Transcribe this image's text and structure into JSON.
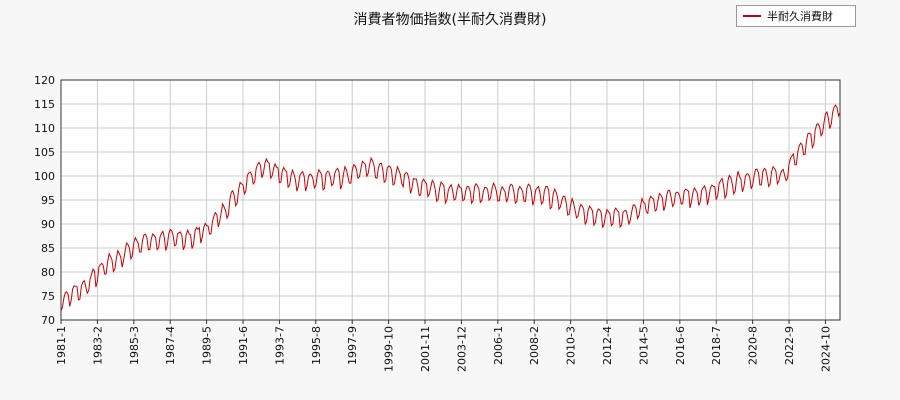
{
  "chart_data": {
    "type": "line",
    "title": "消費者物価指数(半耐久消費財)",
    "legend": "top-right",
    "grid": true,
    "x_range": [
      "1981-01",
      "2025-08"
    ],
    "ylim": [
      70,
      120
    ],
    "y_ticks": [
      70,
      75,
      80,
      85,
      90,
      95,
      100,
      105,
      110,
      115,
      120
    ],
    "x_ticks": [
      "1981-1",
      "1983-2",
      "1985-3",
      "1987-4",
      "1989-5",
      "1991-6",
      "1993-7",
      "1995-8",
      "1997-9",
      "1999-10",
      "2001-11",
      "2003-12",
      "2006-1",
      "2008-2",
      "2010-3",
      "2012-4",
      "2014-5",
      "2016-6",
      "2018-7",
      "2020-8",
      "2022-9",
      "2024-10"
    ],
    "series": [
      {
        "name": "半耐久消費財",
        "color": "#cc0000",
        "seasonal_amplitude": 2.5,
        "anchors": [
          [
            "1981-01",
            74
          ],
          [
            "1982-06",
            77
          ],
          [
            "1983-06",
            81
          ],
          [
            "1984-06",
            83
          ],
          [
            "1985-06",
            86
          ],
          [
            "1986-06",
            86.5
          ],
          [
            "1987-06",
            87
          ],
          [
            "1988-06",
            87
          ],
          [
            "1989-06",
            89
          ],
          [
            "1990-06",
            93
          ],
          [
            "1991-06",
            98
          ],
          [
            "1992-06",
            102
          ],
          [
            "1993-06",
            101
          ],
          [
            "1994-06",
            99
          ],
          [
            "1995-06",
            99
          ],
          [
            "1996-06",
            99.5
          ],
          [
            "1997-06",
            100
          ],
          [
            "1998-06",
            102
          ],
          [
            "1999-06",
            101
          ],
          [
            "2000-06",
            100
          ],
          [
            "2001-06",
            98
          ],
          [
            "2002-06",
            97
          ],
          [
            "2003-06",
            96.5
          ],
          [
            "2004-06",
            96.5
          ],
          [
            "2005-06",
            96.5
          ],
          [
            "2006-06",
            96.5
          ],
          [
            "2007-06",
            96.5
          ],
          [
            "2008-06",
            96.5
          ],
          [
            "2009-06",
            95
          ],
          [
            "2010-06",
            93
          ],
          [
            "2011-06",
            92
          ],
          [
            "2012-06",
            91.5
          ],
          [
            "2013-06",
            91.5
          ],
          [
            "2014-06",
            94
          ],
          [
            "2015-06",
            95
          ],
          [
            "2016-06",
            95.5
          ],
          [
            "2017-06",
            96
          ],
          [
            "2018-06",
            97
          ],
          [
            "2019-06",
            98.5
          ],
          [
            "2020-06",
            99.5
          ],
          [
            "2021-06",
            100
          ],
          [
            "2022-06",
            100
          ],
          [
            "2023-01",
            104
          ],
          [
            "2024-01",
            108
          ],
          [
            "2025-01",
            112
          ],
          [
            "2025-08",
            115
          ]
        ]
      }
    ]
  }
}
